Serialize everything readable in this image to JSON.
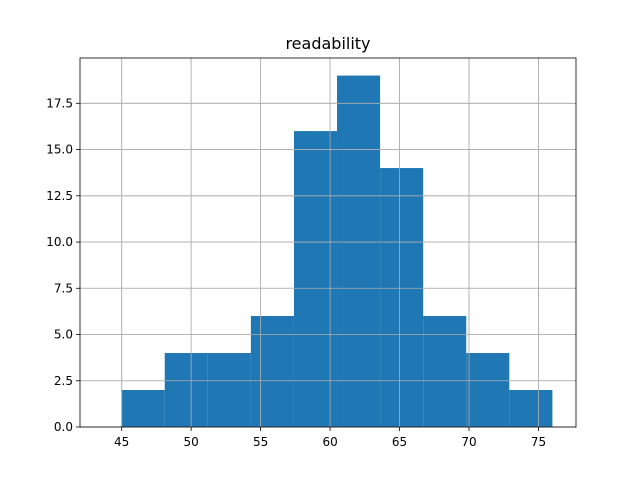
{
  "chart_data": {
    "type": "bar",
    "subtype": "histogram",
    "title": "readability",
    "xlabel": "",
    "ylabel": "",
    "bin_edges": [
      45.0,
      48.1,
      51.2,
      54.3,
      57.4,
      60.5,
      63.6,
      66.7,
      69.8,
      72.9,
      76.0
    ],
    "values": [
      2,
      4,
      4,
      6,
      16,
      19,
      14,
      6,
      4,
      2
    ],
    "xlim": [
      42.0,
      77.7
    ],
    "ylim": [
      0,
      19.95
    ],
    "x_ticks": [
      45,
      50,
      55,
      60,
      65,
      70,
      75
    ],
    "x_tick_labels": [
      "45",
      "50",
      "55",
      "60",
      "65",
      "70",
      "75"
    ],
    "y_ticks": [
      0,
      2.5,
      5,
      7.5,
      10,
      12.5,
      15,
      17.5
    ],
    "y_tick_labels": [
      "0.0",
      "2.5",
      "5.0",
      "7.5",
      "10.0",
      "12.5",
      "15.0",
      "17.5"
    ],
    "grid": true,
    "bar_color": "#1f77b4",
    "grid_color": "#b0b0b0"
  }
}
